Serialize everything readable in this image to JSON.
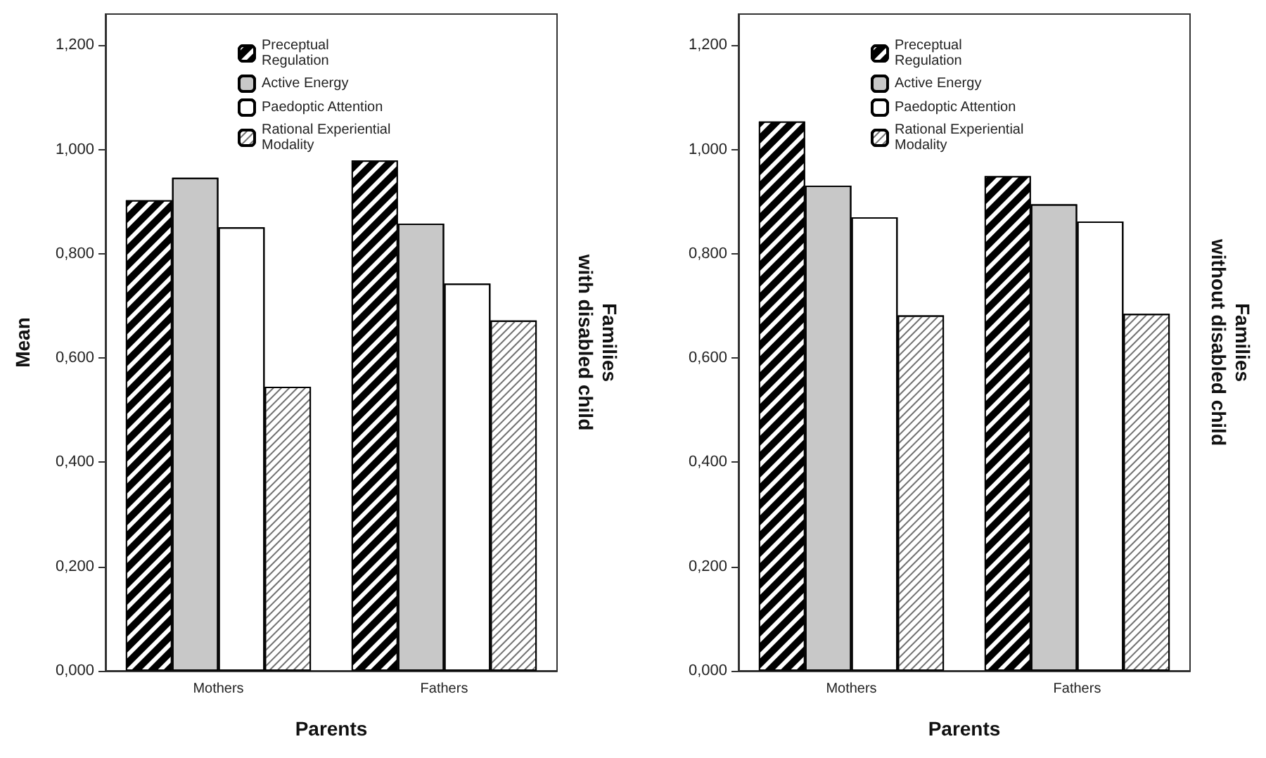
{
  "chart_data": [
    {
      "type": "bar",
      "xlabel": "Parents",
      "ylabel": "Mean",
      "y2label": "Families\nwith disabled child",
      "categories": [
        "Mothers",
        "Fathers"
      ],
      "series": [
        {
          "name": "Preceptual Regulation",
          "color": "#000000",
          "values": [
            0.903,
            0.979
          ]
        },
        {
          "name": "Active Energy",
          "color": "#c8c8c8",
          "values": [
            0.946,
            0.858
          ]
        },
        {
          "name": "Paedoptic Attention",
          "color": "#ffffff",
          "values": [
            0.851,
            0.743
          ]
        },
        {
          "name": "Rational Experiential Modality",
          "color": "#ffffff",
          "values": [
            0.545,
            0.672
          ]
        }
      ],
      "ylim": [
        0,
        1.26
      ],
      "yticks": [
        {
          "value": 0,
          "label": "0,000"
        },
        {
          "value": 0.2,
          "label": "0,200"
        },
        {
          "value": 0.4,
          "label": "0,400"
        },
        {
          "value": 0.6,
          "label": "0,600"
        },
        {
          "value": 0.8,
          "label": "0,800"
        },
        {
          "value": 1,
          "label": "1,000"
        },
        {
          "value": 1.2,
          "label": "1,200"
        }
      ],
      "grid": false,
      "legend": "top"
    },
    {
      "type": "bar",
      "xlabel": "Parents",
      "y2label": "Families\nwithout disabled child",
      "categories": [
        "Mothers",
        "Fathers"
      ],
      "series": [
        {
          "name": "Preceptual Regulation",
          "color": "#000000",
          "values": [
            1.054,
            0.949
          ]
        },
        {
          "name": "Active Energy",
          "color": "#c8c8c8",
          "values": [
            0.931,
            0.895
          ]
        },
        {
          "name": "Paedoptic Attention",
          "color": "#ffffff",
          "values": [
            0.87,
            0.862
          ]
        },
        {
          "name": "Rational Experiential Modality",
          "color": "#ffffff",
          "values": [
            0.682,
            0.685
          ]
        }
      ],
      "ylim": [
        0,
        1.26
      ],
      "yticks": [
        {
          "value": 0,
          "label": "0,000"
        },
        {
          "value": 0.2,
          "label": "0,200"
        },
        {
          "value": 0.4,
          "label": "0,400"
        },
        {
          "value": 0.6,
          "label": "0,600"
        },
        {
          "value": 0.8,
          "label": "0,800"
        },
        {
          "value": 1,
          "label": "1,000"
        },
        {
          "value": 1.2,
          "label": "1,200"
        }
      ],
      "grid": false,
      "legend": "top"
    }
  ]
}
